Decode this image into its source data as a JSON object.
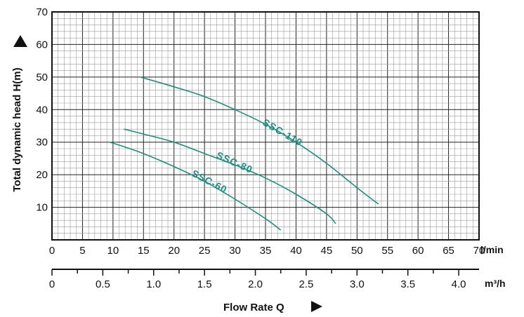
{
  "chart_data": {
    "type": "line",
    "ylabel": "Total dynamic head H(m)",
    "xlabel": "Flow Rate Q",
    "x_unit_primary": "l/min",
    "x_unit_secondary": "m³/h",
    "xlim": [
      0,
      70
    ],
    "ylim": [
      0,
      70
    ],
    "x_ticks": [
      "0",
      "5",
      "10",
      "15",
      "20",
      "25",
      "30",
      "35",
      "40",
      "45",
      "50",
      "55",
      "60",
      "65",
      "70"
    ],
    "y_ticks": [
      "10",
      "20",
      "30",
      "40",
      "50",
      "60",
      "70"
    ],
    "x2_ticks": [
      "0",
      "0.5",
      "1.0",
      "1.5",
      "2.0",
      "2.5",
      "3.0",
      "3.5",
      "4.0"
    ],
    "grid": true,
    "series": [
      {
        "name": "SSC-110",
        "x": [
          14.5,
          20,
          25,
          30,
          35,
          40,
          45,
          50,
          53.5
        ],
        "y": [
          50,
          47,
          44,
          40,
          35.5,
          30,
          23.5,
          16,
          11
        ]
      },
      {
        "name": "SSC-80",
        "x": [
          11.8,
          15,
          20,
          25,
          30,
          35,
          40,
          45,
          46.5
        ],
        "y": [
          34,
          32.5,
          30,
          26.5,
          23,
          19,
          14,
          8,
          5
        ]
      },
      {
        "name": "SSC-60",
        "x": [
          9.5,
          12,
          15,
          20,
          25,
          30,
          35,
          37.5
        ],
        "y": [
          30,
          28.5,
          26.5,
          22.5,
          18,
          12.5,
          6.5,
          3
        ]
      }
    ]
  }
}
